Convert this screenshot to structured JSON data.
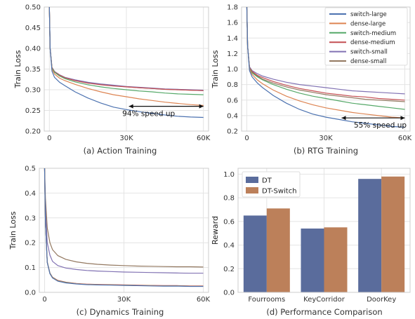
{
  "colors": {
    "switch-large": "#4C72B0",
    "dense-large": "#DD8452",
    "switch-medium": "#55A868",
    "dense-medium": "#C44E52",
    "switch-small": "#8172B3",
    "dense-small": "#937860",
    "DT": "#5A6C9C",
    "DT-Switch": "#BC805A"
  },
  "chart_data": [
    {
      "id": "a",
      "type": "line",
      "caption": "(a) Action Training",
      "xlabel": "",
      "ylabel": "Train Loss",
      "xlim": [
        -2000,
        62000
      ],
      "ylim": [
        0.2,
        0.5
      ],
      "xticks": [
        0,
        30000,
        60000
      ],
      "xtick_labels": [
        "0",
        "30K",
        "60K"
      ],
      "yticks": [
        0.2,
        0.25,
        0.3,
        0.35,
        0.4,
        0.45,
        0.5
      ],
      "ytick_labels": [
        "0.20",
        "0.25",
        "0.30",
        "0.35",
        "0.40",
        "0.45",
        "0.50"
      ],
      "grid": true,
      "x": [
        0,
        300,
        1000,
        2000,
        4000,
        6000,
        10000,
        15000,
        20000,
        25000,
        30000,
        35000,
        40000,
        45000,
        50000,
        55000,
        60000
      ],
      "series": [
        {
          "name": "switch-large",
          "values": [
            0.5,
            0.4,
            0.345,
            0.33,
            0.318,
            0.31,
            0.295,
            0.28,
            0.268,
            0.258,
            0.252,
            0.247,
            0.243,
            0.239,
            0.236,
            0.234,
            0.233
          ]
        },
        {
          "name": "dense-large",
          "values": [
            0.5,
            0.4,
            0.35,
            0.338,
            0.328,
            0.322,
            0.313,
            0.303,
            0.295,
            0.288,
            0.283,
            0.278,
            0.274,
            0.27,
            0.267,
            0.264,
            0.262
          ]
        },
        {
          "name": "switch-medium",
          "values": [
            0.5,
            0.4,
            0.352,
            0.342,
            0.333,
            0.327,
            0.319,
            0.312,
            0.307,
            0.303,
            0.3,
            0.297,
            0.295,
            0.292,
            0.29,
            0.289,
            0.288
          ]
        },
        {
          "name": "dense-medium",
          "values": [
            0.5,
            0.4,
            0.353,
            0.343,
            0.335,
            0.329,
            0.322,
            0.316,
            0.312,
            0.309,
            0.307,
            0.305,
            0.303,
            0.301,
            0.3,
            0.299,
            0.298
          ]
        },
        {
          "name": "switch-small",
          "values": [
            0.5,
            0.4,
            0.354,
            0.344,
            0.336,
            0.33,
            0.324,
            0.318,
            0.314,
            0.311,
            0.308,
            0.306,
            0.304,
            0.302,
            0.301,
            0.3,
            0.299
          ]
        },
        {
          "name": "dense-small",
          "values": [
            0.5,
            0.4,
            0.354,
            0.344,
            0.336,
            0.33,
            0.323,
            0.317,
            0.313,
            0.31,
            0.307,
            0.305,
            0.303,
            0.301,
            0.3,
            0.299,
            0.298
          ]
        }
      ],
      "annotation": {
        "text": "94% speed up",
        "arrow_from": [
          60000,
          0.26
        ],
        "arrow_to": [
          31000,
          0.26
        ]
      }
    },
    {
      "id": "b",
      "type": "line",
      "caption": "(b) RTG Training",
      "xlabel": "",
      "ylabel": "Train Loss",
      "xlim": [
        -2000,
        62000
      ],
      "ylim": [
        0.2,
        1.8
      ],
      "xticks": [
        0,
        30000,
        60000
      ],
      "xtick_labels": [
        "0",
        "30K",
        "60K"
      ],
      "yticks": [
        0.2,
        0.4,
        0.6,
        0.8,
        1.0,
        1.2,
        1.4,
        1.6,
        1.8
      ],
      "ytick_labels": [
        "0.2",
        "0.4",
        "0.6",
        "0.8",
        "1.0",
        "1.2",
        "1.4",
        "1.6",
        "1.8"
      ],
      "grid": true,
      "x": [
        0,
        300,
        1000,
        2000,
        4000,
        6000,
        10000,
        15000,
        20000,
        25000,
        30000,
        35000,
        40000,
        45000,
        50000,
        55000,
        60000
      ],
      "series": [
        {
          "name": "switch-large",
          "values": [
            1.8,
            1.3,
            0.98,
            0.9,
            0.82,
            0.76,
            0.66,
            0.56,
            0.48,
            0.42,
            0.38,
            0.35,
            0.32,
            0.3,
            0.28,
            0.26,
            0.25
          ]
        },
        {
          "name": "dense-large",
          "values": [
            1.8,
            1.3,
            1.0,
            0.93,
            0.86,
            0.81,
            0.73,
            0.65,
            0.59,
            0.54,
            0.5,
            0.47,
            0.44,
            0.42,
            0.4,
            0.38,
            0.37
          ]
        },
        {
          "name": "switch-medium",
          "values": [
            1.8,
            1.3,
            1.01,
            0.95,
            0.9,
            0.86,
            0.8,
            0.74,
            0.69,
            0.65,
            0.62,
            0.59,
            0.56,
            0.54,
            0.52,
            0.5,
            0.48
          ]
        },
        {
          "name": "dense-medium",
          "values": [
            1.8,
            1.3,
            1.02,
            0.97,
            0.92,
            0.89,
            0.84,
            0.79,
            0.75,
            0.72,
            0.69,
            0.67,
            0.65,
            0.64,
            0.62,
            0.61,
            0.6
          ]
        },
        {
          "name": "switch-small",
          "values": [
            1.8,
            1.3,
            1.03,
            0.98,
            0.94,
            0.91,
            0.87,
            0.83,
            0.8,
            0.78,
            0.76,
            0.74,
            0.72,
            0.71,
            0.7,
            0.69,
            0.68
          ]
        },
        {
          "name": "dense-small",
          "values": [
            1.8,
            1.3,
            1.02,
            0.96,
            0.91,
            0.87,
            0.82,
            0.77,
            0.73,
            0.7,
            0.67,
            0.65,
            0.63,
            0.61,
            0.6,
            0.59,
            0.58
          ]
        }
      ],
      "annotation": {
        "text": "55% speed up",
        "arrow_from": [
          36000,
          0.37
        ],
        "arrow_to": [
          60000,
          0.37
        ]
      }
    },
    {
      "id": "c",
      "type": "line",
      "caption": "(c) Dynamics Training",
      "xlabel": "",
      "ylabel": "Train Loss",
      "xlim": [
        -2000,
        62000
      ],
      "ylim": [
        0.0,
        0.5
      ],
      "xticks": [
        0,
        30000,
        60000
      ],
      "xtick_labels": [
        "0",
        "30K",
        "60K"
      ],
      "yticks": [
        0.0,
        0.1,
        0.2,
        0.3,
        0.4,
        0.5
      ],
      "ytick_labels": [
        "0.0",
        "0.1",
        "0.2",
        "0.3",
        "0.4",
        "0.5"
      ],
      "grid": true,
      "x": [
        0,
        300,
        1000,
        2000,
        3000,
        5000,
        8000,
        12000,
        16000,
        20000,
        25000,
        30000,
        35000,
        40000,
        45000,
        50000,
        55000,
        60000
      ],
      "series": [
        {
          "name": "switch-large",
          "values": [
            0.5,
            0.28,
            0.12,
            0.075,
            0.058,
            0.045,
            0.038,
            0.034,
            0.031,
            0.03,
            0.029,
            0.028,
            0.027,
            0.026,
            0.025,
            0.025,
            0.024,
            0.024
          ]
        },
        {
          "name": "dense-large",
          "values": [
            0.5,
            0.28,
            0.121,
            0.076,
            0.059,
            0.046,
            0.039,
            0.035,
            0.032,
            0.031,
            0.03,
            0.029,
            0.028,
            0.027,
            0.026,
            0.026,
            0.025,
            0.025
          ]
        },
        {
          "name": "switch-medium",
          "values": [
            0.5,
            0.28,
            0.122,
            0.077,
            0.06,
            0.047,
            0.04,
            0.035,
            0.032,
            0.031,
            0.03,
            0.029,
            0.028,
            0.027,
            0.026,
            0.026,
            0.025,
            0.025
          ]
        },
        {
          "name": "dense-medium",
          "values": [
            0.5,
            0.28,
            0.123,
            0.078,
            0.061,
            0.048,
            0.041,
            0.036,
            0.033,
            0.032,
            0.031,
            0.03,
            0.029,
            0.028,
            0.027,
            0.027,
            0.026,
            0.026
          ]
        },
        {
          "name": "switch-small",
          "values": [
            0.5,
            0.34,
            0.2,
            0.15,
            0.125,
            0.108,
            0.098,
            0.092,
            0.088,
            0.086,
            0.084,
            0.082,
            0.081,
            0.08,
            0.079,
            0.078,
            0.077,
            0.077
          ]
        },
        {
          "name": "dense-small",
          "values": [
            0.5,
            0.38,
            0.26,
            0.2,
            0.172,
            0.148,
            0.133,
            0.123,
            0.117,
            0.113,
            0.11,
            0.108,
            0.106,
            0.105,
            0.104,
            0.103,
            0.103,
            0.102
          ]
        }
      ]
    },
    {
      "id": "d",
      "type": "bar",
      "caption": "(d) Performance Comparison",
      "xlabel": "",
      "ylabel": "Reward",
      "categories": [
        "Fourrooms",
        "KeyCorridor",
        "DoorKey"
      ],
      "ylim": [
        0,
        1.05
      ],
      "yticks": [
        0.0,
        0.2,
        0.4,
        0.6,
        0.8,
        1.0
      ],
      "ytick_labels": [
        "0.0",
        "0.2",
        "0.4",
        "0.6",
        "0.8",
        "1.0"
      ],
      "grid": true,
      "legend_position": "top-left",
      "series": [
        {
          "name": "DT",
          "values": [
            0.65,
            0.54,
            0.96
          ]
        },
        {
          "name": "DT-Switch",
          "values": [
            0.71,
            0.55,
            0.98
          ]
        }
      ]
    }
  ]
}
